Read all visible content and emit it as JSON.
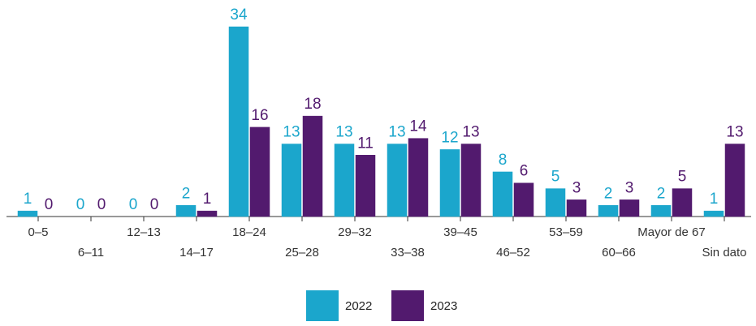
{
  "chart_data": {
    "type": "bar",
    "categories": [
      "0–5",
      "6–11",
      "12–13",
      "14–17",
      "18–24",
      "25–28",
      "29–32",
      "33–38",
      "39–45",
      "46–52",
      "53–59",
      "60–66",
      "Mayor de 67",
      "Sin dato"
    ],
    "series": [
      {
        "name": "2022",
        "color": "#1ba6cc",
        "values": [
          1,
          0,
          0,
          2,
          34,
          13,
          13,
          13,
          12,
          8,
          5,
          2,
          2,
          1
        ]
      },
      {
        "name": "2023",
        "color": "#521a6e",
        "values": [
          0,
          0,
          0,
          1,
          16,
          18,
          11,
          14,
          13,
          6,
          3,
          3,
          5,
          13
        ]
      }
    ],
    "ylim": [
      0,
      34
    ],
    "legend": "bottom"
  }
}
